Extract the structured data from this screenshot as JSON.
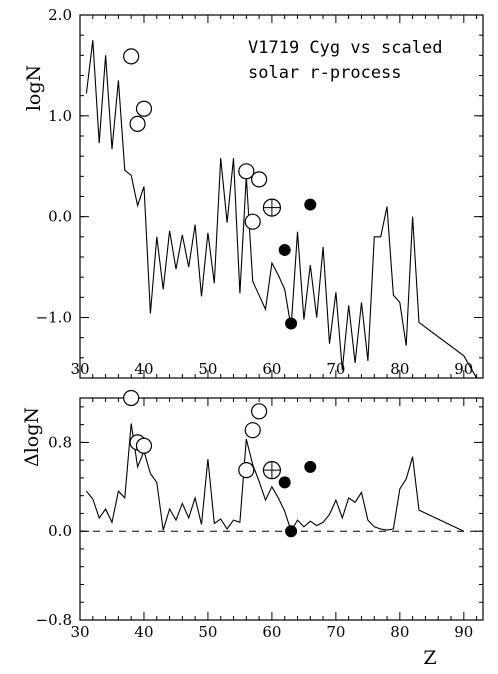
{
  "chart_data": [
    {
      "type": "line",
      "id": "top",
      "annotation_lines": [
        "V1719 Cyg vs scaled",
        "solar r-process"
      ],
      "ylabel": "logN",
      "xlabel": "",
      "xlim": [
        30,
        93
      ],
      "ylim": [
        -1.6,
        2.0
      ],
      "x_ticks": [
        30,
        40,
        50,
        60,
        70,
        80,
        90
      ],
      "y_ticks": [
        -1.0,
        0.0,
        1.0,
        2.0
      ],
      "y_tick_labels": [
        "−1.0",
        "0.0",
        "1.0",
        "2.0"
      ],
      "series": [
        {
          "style": "line",
          "x": [
            31,
            32,
            33,
            34,
            35,
            36,
            37,
            38,
            39,
            40,
            41,
            42,
            43,
            44,
            45,
            46,
            47,
            48,
            49,
            50,
            51,
            52,
            53,
            54,
            55,
            56,
            57,
            58,
            59,
            60,
            61,
            62,
            63,
            64,
            65,
            66,
            67,
            68,
            69,
            70,
            71,
            72,
            73,
            74,
            75,
            76,
            77,
            78,
            79,
            80,
            81,
            82,
            83,
            90,
            92
          ],
          "y": [
            1.22,
            1.75,
            0.73,
            1.6,
            0.67,
            1.35,
            0.46,
            0.41,
            0.11,
            0.3,
            -0.96,
            -0.2,
            -0.72,
            -0.14,
            -0.52,
            -0.18,
            -0.5,
            -0.08,
            -0.79,
            -0.16,
            -0.66,
            0.58,
            -0.06,
            0.58,
            -0.76,
            0.4,
            -0.64,
            -0.78,
            -0.92,
            -0.46,
            -0.58,
            -0.72,
            -1.1,
            -0.15,
            -1.02,
            -0.48,
            -1.0,
            -0.3,
            -1.26,
            -0.75,
            -1.52,
            -0.88,
            -1.45,
            -0.85,
            -1.43,
            -0.2,
            -0.2,
            0.1,
            -0.78,
            -0.85,
            -1.28,
            0.0,
            -1.05,
            -1.38,
            -1.6
          ]
        },
        {
          "style": "open-circle",
          "x": [
            38,
            39,
            40,
            56,
            57,
            58
          ],
          "y": [
            1.59,
            0.92,
            1.07,
            0.45,
            -0.05,
            0.37
          ]
        },
        {
          "style": "circle-plus",
          "x": [
            60
          ],
          "y": [
            0.09
          ]
        },
        {
          "style": "filled-circle",
          "x": [
            62,
            63,
            66
          ],
          "y": [
            -0.33,
            -1.06,
            0.12
          ]
        }
      ]
    },
    {
      "type": "line",
      "id": "bottom",
      "ylabel": "ΔlogN",
      "xlabel": "Z",
      "xlim": [
        30,
        93
      ],
      "ylim": [
        -0.8,
        1.2
      ],
      "x_ticks": [
        30,
        40,
        50,
        60,
        70,
        80,
        90
      ],
      "y_ticks": [
        -0.8,
        0.0,
        0.8
      ],
      "y_tick_labels": [
        "−0.8",
        "0.0",
        "0.8"
      ],
      "reference_line_y": 0.0,
      "series": [
        {
          "style": "line",
          "x": [
            31,
            32,
            33,
            34,
            35,
            36,
            37,
            38,
            39,
            40,
            41,
            42,
            43,
            44,
            45,
            46,
            47,
            48,
            49,
            50,
            51,
            52,
            53,
            54,
            55,
            56,
            57,
            58,
            59,
            60,
            61,
            62,
            63,
            64,
            65,
            66,
            67,
            68,
            69,
            70,
            71,
            72,
            73,
            74,
            75,
            76,
            77,
            78,
            79,
            80,
            81,
            82,
            83,
            90
          ],
          "y": [
            0.36,
            0.29,
            0.12,
            0.2,
            0.08,
            0.36,
            0.3,
            0.97,
            0.58,
            0.72,
            0.52,
            0.44,
            0.01,
            0.2,
            0.1,
            0.25,
            0.12,
            0.3,
            0.06,
            0.65,
            0.07,
            0.11,
            0.02,
            0.1,
            0.08,
            0.83,
            0.6,
            0.45,
            0.28,
            0.4,
            0.3,
            0.18,
            0.0,
            0.1,
            0.04,
            0.09,
            0.05,
            0.08,
            0.15,
            0.28,
            0.12,
            0.3,
            0.26,
            0.35,
            0.1,
            0.04,
            0.02,
            0.01,
            0.02,
            0.38,
            0.47,
            0.67,
            0.19,
            0.0
          ]
        },
        {
          "style": "open-circle",
          "x": [
            38,
            39,
            40,
            56,
            57,
            58
          ],
          "y": [
            1.2,
            0.8,
            0.77,
            0.55,
            0.91,
            1.08
          ]
        },
        {
          "style": "circle-plus",
          "x": [
            60
          ],
          "y": [
            0.55
          ]
        },
        {
          "style": "filled-circle",
          "x": [
            62,
            63,
            66
          ],
          "y": [
            0.44,
            0.0,
            0.58
          ]
        }
      ]
    }
  ]
}
